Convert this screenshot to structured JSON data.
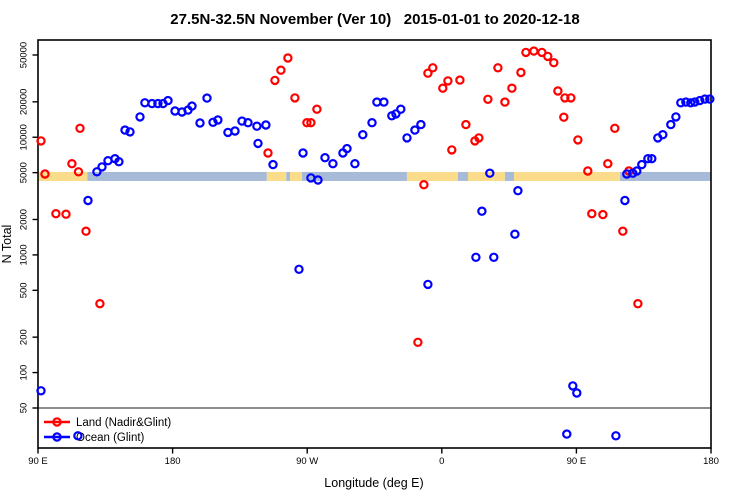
{
  "title": "27.5N-32.5N November (Ver 10)   2015-01-01 to 2020-12-18",
  "legend": {
    "items": [
      {
        "label": "Land (Nadir&Glint)",
        "color": "#FF0000"
      },
      {
        "label": "Ocean (Glint)",
        "color": "#0000FF"
      }
    ]
  },
  "chart_data": {
    "type": "scatter",
    "title": "27.5N-32.5N November (Ver 10)   2015-01-01 to 2020-12-18",
    "xlabel": "Longitude (deg E)",
    "ylabel": "N Total",
    "x_axis_note": "x positions are degrees eastward from 90E (axis wraps 90E->180->90W->0->90E->180, total 450 deg)",
    "x_ticks": [
      {
        "pos": 0,
        "label": "90 E"
      },
      {
        "pos": 90,
        "label": "180"
      },
      {
        "pos": 180,
        "label": "90 W"
      },
      {
        "pos": 270,
        "label": "0"
      },
      {
        "pos": 360,
        "label": "90 E"
      },
      {
        "pos": 450,
        "label": "180"
      }
    ],
    "y_scale": "log",
    "y_ticks": [
      50,
      100,
      200,
      500,
      1000,
      2000,
      5000,
      10000,
      20000,
      50000
    ],
    "ylim": [
      23,
      67000
    ],
    "xlim": [
      0,
      450
    ],
    "grid": "off",
    "legend_position": "bottom-left",
    "reference_line": {
      "y": 50,
      "color": "#7d7d7d"
    },
    "coast_band": {
      "value_range": [
        4250,
        5070
      ],
      "land_color": "#FBDC8B",
      "ocean_color": "#A7BBD9",
      "segments": [
        {
          "type": "land",
          "from": 0,
          "to": 33
        },
        {
          "type": "ocean",
          "from": 33,
          "to": 153
        },
        {
          "type": "land",
          "from": 153,
          "to": 166
        },
        {
          "type": "ocean",
          "from": 166,
          "to": 168.5
        },
        {
          "type": "land",
          "from": 168.5,
          "to": 176.5
        },
        {
          "type": "ocean",
          "from": 176.5,
          "to": 246.7
        },
        {
          "type": "land",
          "from": 246.7,
          "to": 280.8
        },
        {
          "type": "ocean",
          "from": 280.8,
          "to": 287.5
        },
        {
          "type": "land",
          "from": 287.5,
          "to": 312.2
        },
        {
          "type": "ocean",
          "from": 312.2,
          "to": 318.3
        },
        {
          "type": "land",
          "from": 318.3,
          "to": 389.2
        },
        {
          "type": "ocean",
          "from": 389.2,
          "to": 450
        }
      ]
    },
    "series": [
      {
        "name": "Land (Nadir&Glint)",
        "color": "#FF0000",
        "symbol": "open-circle",
        "points": [
          [
            2.0,
            9300
          ],
          [
            4.7,
            4870
          ],
          [
            12.0,
            2240
          ],
          [
            18.7,
            2220
          ],
          [
            22.7,
            5960
          ],
          [
            27.1,
            5080
          ],
          [
            28.1,
            11900
          ],
          [
            32.1,
            1590
          ],
          [
            41.4,
            385
          ],
          [
            153.8,
            7350
          ],
          [
            158.4,
            30400
          ],
          [
            162.4,
            37100
          ],
          [
            167.1,
            47100
          ],
          [
            171.8,
            21600
          ],
          [
            179.8,
            13300
          ],
          [
            182.5,
            13300
          ],
          [
            186.5,
            17300
          ],
          [
            254.0,
            181
          ],
          [
            258.0,
            3950
          ],
          [
            260.7,
            35000
          ],
          [
            264.0,
            38900
          ],
          [
            270.7,
            26100
          ],
          [
            274.1,
            30100
          ],
          [
            276.7,
            7800
          ],
          [
            282.1,
            30600
          ],
          [
            286.1,
            12800
          ],
          [
            292.1,
            9300
          ],
          [
            294.8,
            9870
          ],
          [
            300.8,
            21000
          ],
          [
            307.5,
            38900
          ],
          [
            312.2,
            19900
          ],
          [
            316.9,
            26100
          ],
          [
            322.9,
            35500
          ],
          [
            326.2,
            52600
          ],
          [
            331.6,
            54000
          ],
          [
            336.9,
            52600
          ],
          [
            340.9,
            48600
          ],
          [
            344.9,
            43000
          ],
          [
            347.6,
            24700
          ],
          [
            351.6,
            14800
          ],
          [
            352.3,
            21600
          ],
          [
            356.3,
            21600
          ],
          [
            361.0,
            9500
          ],
          [
            367.6,
            5170
          ],
          [
            370.3,
            2240
          ],
          [
            377.7,
            2200
          ],
          [
            381.0,
            5960
          ],
          [
            385.7,
            11900
          ],
          [
            391.0,
            1590
          ],
          [
            395.1,
            5170
          ],
          [
            401.1,
            385
          ]
        ]
      },
      {
        "name": "Ocean (Glint)",
        "color": "#0000FF",
        "symbol": "open-circle",
        "points": [
          [
            2.0,
            70
          ],
          [
            26.7,
            29
          ],
          [
            33.4,
            2900
          ],
          [
            39.4,
            5080
          ],
          [
            42.8,
            5600
          ],
          [
            46.8,
            6320
          ],
          [
            51.5,
            6570
          ],
          [
            54.1,
            6190
          ],
          [
            58.2,
            11500
          ],
          [
            61.5,
            11100
          ],
          [
            68.2,
            14900
          ],
          [
            71.5,
            19600
          ],
          [
            76.2,
            19300
          ],
          [
            80.2,
            19300
          ],
          [
            83.6,
            19300
          ],
          [
            86.9,
            20500
          ],
          [
            91.6,
            16700
          ],
          [
            96.3,
            16400
          ],
          [
            100.3,
            17000
          ],
          [
            103.0,
            18400
          ],
          [
            108.3,
            13200
          ],
          [
            113.0,
            21500
          ],
          [
            117.0,
            13400
          ],
          [
            120.3,
            14000
          ],
          [
            127.0,
            11000
          ],
          [
            131.7,
            11300
          ],
          [
            136.4,
            13700
          ],
          [
            140.4,
            13300
          ],
          [
            146.4,
            12400
          ],
          [
            147.1,
            8870
          ],
          [
            152.4,
            12700
          ],
          [
            157.1,
            5850
          ],
          [
            174.5,
            754
          ],
          [
            177.2,
            7350
          ],
          [
            182.5,
            4510
          ],
          [
            187.2,
            4330
          ],
          [
            191.9,
            6700
          ],
          [
            197.2,
            5960
          ],
          [
            203.9,
            7350
          ],
          [
            206.6,
            8000
          ],
          [
            211.9,
            5960
          ],
          [
            217.2,
            10500
          ],
          [
            223.3,
            13300
          ],
          [
            226.6,
            19900
          ],
          [
            231.3,
            19900
          ],
          [
            236.6,
            15200
          ],
          [
            239.3,
            15800
          ],
          [
            242.6,
            17300
          ],
          [
            246.7,
            9870
          ],
          [
            252.0,
            11500
          ],
          [
            256.0,
            12800
          ],
          [
            260.7,
            561
          ],
          [
            292.8,
            954
          ],
          [
            296.8,
            2350
          ],
          [
            302.1,
            4950
          ],
          [
            304.8,
            954
          ],
          [
            318.9,
            1500
          ],
          [
            320.9,
            3510
          ],
          [
            353.6,
            30
          ],
          [
            357.6,
            77
          ],
          [
            360.3,
            67
          ],
          [
            386.4,
            29
          ],
          [
            392.4,
            2900
          ],
          [
            393.7,
            4870
          ],
          [
            397.7,
            4950
          ],
          [
            400.4,
            5170
          ],
          [
            403.7,
            5850
          ],
          [
            407.8,
            6570
          ],
          [
            410.4,
            6570
          ],
          [
            414.4,
            9870
          ],
          [
            417.8,
            10500
          ],
          [
            423.1,
            12800
          ],
          [
            426.5,
            14900
          ],
          [
            429.8,
            19600
          ],
          [
            433.2,
            19900
          ],
          [
            436.5,
            19600
          ],
          [
            439.2,
            19900
          ],
          [
            442.5,
            20500
          ],
          [
            445.9,
            21100
          ],
          [
            449.2,
            21100
          ]
        ]
      }
    ]
  }
}
